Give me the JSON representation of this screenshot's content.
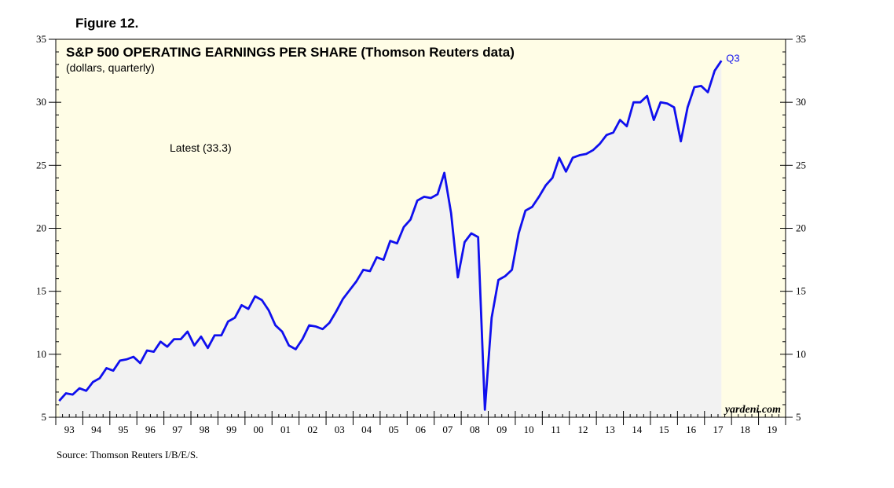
{
  "figure_label": "Figure 12.",
  "source": "Source: Thomson Reuters I/B/E/S.",
  "colors": {
    "line": "#1010ee",
    "plot_background": "#fffde6",
    "area_fill": "#f2f2f2",
    "axis": "#000000"
  },
  "chart_data": {
    "type": "area",
    "title": "S&P 500 OPERATING EARNINGS PER SHARE (Thomson Reuters data)",
    "subtitle": "(dollars, quarterly)",
    "annotation": "Latest (33.3)",
    "end_label": "Q3",
    "watermark": "yardeni.com",
    "x_tick_labels": [
      "93",
      "94",
      "95",
      "96",
      "97",
      "98",
      "99",
      "00",
      "01",
      "02",
      "03",
      "04",
      "05",
      "06",
      "07",
      "08",
      "09",
      "10",
      "11",
      "12",
      "13",
      "14",
      "15",
      "16",
      "17",
      "18",
      "19"
    ],
    "x_range": [
      1993.0,
      2020.0
    ],
    "ylim": [
      5,
      35
    ],
    "y_ticks": [
      5,
      10,
      15,
      20,
      25,
      30,
      35
    ],
    "y_axes": [
      "left",
      "right"
    ],
    "grid": false,
    "series": [
      {
        "name": "",
        "x": [
          1993.125,
          1993.375,
          1993.625,
          1993.875,
          1994.125,
          1994.375,
          1994.625,
          1994.875,
          1995.125,
          1995.375,
          1995.625,
          1995.875,
          1996.125,
          1996.375,
          1996.625,
          1996.875,
          1997.125,
          1997.375,
          1997.625,
          1997.875,
          1998.125,
          1998.375,
          1998.625,
          1998.875,
          1999.125,
          1999.375,
          1999.625,
          1999.875,
          2000.125,
          2000.375,
          2000.625,
          2000.875,
          2001.125,
          2001.375,
          2001.625,
          2001.875,
          2002.125,
          2002.375,
          2002.625,
          2002.875,
          2003.125,
          2003.375,
          2003.625,
          2003.875,
          2004.125,
          2004.375,
          2004.625,
          2004.875,
          2005.125,
          2005.375,
          2005.625,
          2005.875,
          2006.125,
          2006.375,
          2006.625,
          2006.875,
          2007.125,
          2007.375,
          2007.625,
          2007.875,
          2008.125,
          2008.375,
          2008.625,
          2008.875,
          2009.125,
          2009.375,
          2009.625,
          2009.875,
          2010.125,
          2010.375,
          2010.625,
          2010.875,
          2011.125,
          2011.375,
          2011.625,
          2011.875,
          2012.125,
          2012.375,
          2012.625,
          2012.875,
          2013.125,
          2013.375,
          2013.625,
          2013.875,
          2014.125,
          2014.375,
          2014.625,
          2014.875,
          2015.125,
          2015.375,
          2015.625,
          2015.875,
          2016.125,
          2016.375,
          2016.625,
          2016.875,
          2017.125,
          2017.375,
          2017.625
        ],
        "values": [
          6.3,
          6.9,
          6.8,
          7.3,
          7.1,
          7.8,
          8.1,
          8.9,
          8.7,
          9.5,
          9.6,
          9.8,
          9.3,
          10.3,
          10.2,
          11.0,
          10.6,
          11.2,
          11.2,
          11.8,
          10.7,
          11.4,
          10.5,
          11.5,
          11.5,
          12.6,
          12.9,
          13.9,
          13.6,
          14.6,
          14.3,
          13.5,
          12.3,
          11.8,
          10.7,
          10.4,
          11.2,
          12.3,
          12.2,
          12.0,
          12.5,
          13.4,
          14.4,
          15.1,
          15.8,
          16.7,
          16.6,
          17.7,
          17.5,
          19.0,
          18.8,
          20.1,
          20.7,
          22.2,
          22.5,
          22.4,
          22.7,
          24.4,
          21.2,
          16.1,
          18.9,
          19.6,
          19.3,
          5.6,
          12.9,
          15.9,
          16.2,
          16.7,
          19.6,
          21.4,
          21.7,
          22.5,
          23.4,
          24.0,
          25.6,
          24.5,
          25.6,
          25.8,
          25.9,
          26.2,
          26.7,
          27.4,
          27.6,
          28.6,
          28.1,
          30.0,
          30.0,
          30.5,
          28.6,
          30.0,
          29.9,
          29.6,
          26.9,
          29.6,
          31.2,
          31.3,
          30.8,
          32.5,
          33.3
        ]
      }
    ]
  }
}
